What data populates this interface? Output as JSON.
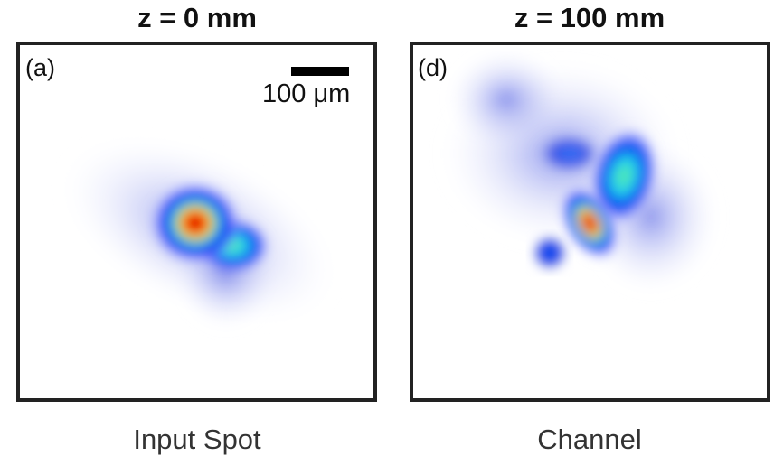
{
  "panels": [
    {
      "title": "z = 0 mm",
      "label": "(a)",
      "scale_bar": "100 μm",
      "caption": "Input Spot"
    },
    {
      "title": "z = 100 mm",
      "label": "(d)",
      "caption": "Channel"
    }
  ]
}
